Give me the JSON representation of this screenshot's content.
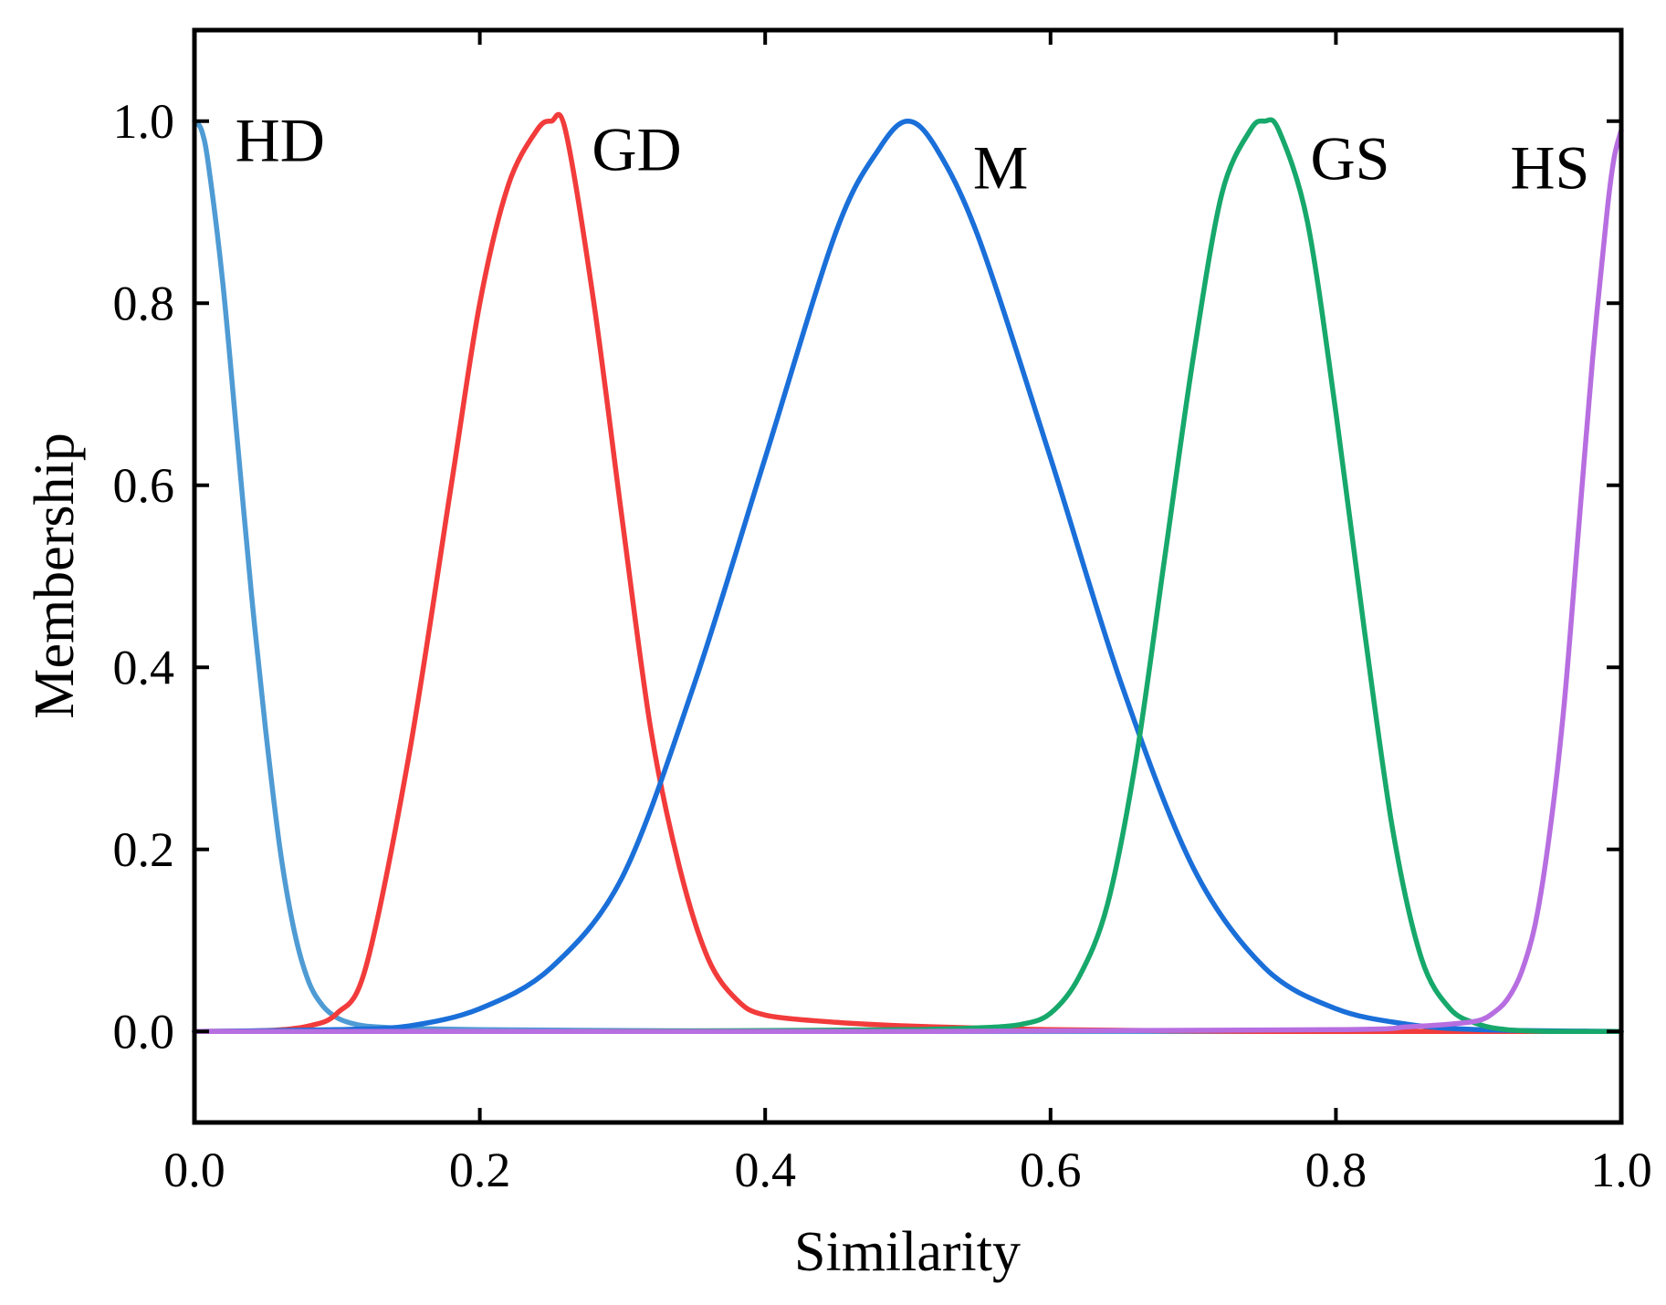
{
  "chart_data": {
    "type": "line",
    "title": "",
    "xlabel": "Similarity",
    "ylabel": "Membership",
    "xlim": [
      0,
      1
    ],
    "ylim": [
      -0.1,
      1.1
    ],
    "grid": false,
    "x_ticks": [
      0,
      0.2,
      0.4,
      0.6,
      0.8,
      1.0
    ],
    "y_ticks": [
      0,
      0.2,
      0.4,
      0.6,
      0.8,
      1.0
    ],
    "x_tick_labels": [
      "0.0",
      "0.2",
      "0.4",
      "0.6",
      "0.8",
      "1.0"
    ],
    "y_tick_labels": [
      "0.0",
      "0.2",
      "0.4",
      "0.6",
      "0.8",
      "1.0"
    ],
    "series": [
      {
        "name": "HD",
        "color": "#4f9bd4",
        "x": [
          0.0,
          0.005,
          0.01,
          0.02,
          0.03,
          0.04,
          0.05,
          0.06,
          0.07,
          0.08,
          0.09,
          0.1,
          0.11,
          0.12,
          0.14,
          0.16,
          0.2,
          0.3,
          0.5,
          0.75,
          1.0
        ],
        "y": [
          1.0,
          0.99,
          0.95,
          0.82,
          0.65,
          0.48,
          0.33,
          0.2,
          0.11,
          0.055,
          0.028,
          0.015,
          0.009,
          0.006,
          0.004,
          0.003,
          0.002,
          0.001,
          0.0,
          0.0,
          0.0
        ]
      },
      {
        "name": "GD",
        "color": "#f23b3b",
        "x": [
          0.0,
          0.05,
          0.08,
          0.1,
          0.12,
          0.15,
          0.18,
          0.2,
          0.22,
          0.24,
          0.25,
          0.26,
          0.28,
          0.3,
          0.32,
          0.34,
          0.36,
          0.38,
          0.4,
          0.45,
          0.5,
          0.6,
          0.75,
          1.0
        ],
        "y": [
          0.0,
          0.001,
          0.006,
          0.02,
          0.07,
          0.3,
          0.6,
          0.8,
          0.93,
          0.99,
          1.0,
          0.99,
          0.8,
          0.56,
          0.33,
          0.18,
          0.08,
          0.035,
          0.018,
          0.01,
          0.006,
          0.002,
          0.0,
          0.0
        ]
      },
      {
        "name": "M",
        "color": "#1a6fd9",
        "x": [
          0.0,
          0.1,
          0.15,
          0.2,
          0.25,
          0.3,
          0.35,
          0.4,
          0.45,
          0.48,
          0.5,
          0.52,
          0.55,
          0.6,
          0.65,
          0.7,
          0.75,
          0.8,
          0.85,
          0.9,
          1.0
        ],
        "y": [
          0.0,
          0.002,
          0.006,
          0.025,
          0.07,
          0.17,
          0.38,
          0.63,
          0.88,
          0.97,
          1.0,
          0.97,
          0.87,
          0.63,
          0.38,
          0.18,
          0.07,
          0.025,
          0.008,
          0.002,
          0.0
        ]
      },
      {
        "name": "GS",
        "color": "#17a86b",
        "x": [
          0.0,
          0.25,
          0.4,
          0.5,
          0.55,
          0.58,
          0.6,
          0.62,
          0.64,
          0.66,
          0.68,
          0.7,
          0.72,
          0.74,
          0.75,
          0.76,
          0.78,
          0.8,
          0.82,
          0.84,
          0.86,
          0.88,
          0.9,
          0.92,
          0.95,
          1.0
        ],
        "y": [
          0.0,
          0.0,
          0.001,
          0.002,
          0.004,
          0.008,
          0.02,
          0.06,
          0.14,
          0.3,
          0.52,
          0.74,
          0.92,
          0.99,
          1.0,
          0.99,
          0.89,
          0.68,
          0.44,
          0.22,
          0.08,
          0.025,
          0.008,
          0.002,
          0.0,
          0.0
        ]
      },
      {
        "name": "HS",
        "color": "#b76ee0",
        "x": [
          0.0,
          0.5,
          0.8,
          0.85,
          0.88,
          0.9,
          0.91,
          0.92,
          0.93,
          0.94,
          0.95,
          0.96,
          0.97,
          0.98,
          0.99,
          0.995,
          1.0
        ],
        "y": [
          0.0,
          0.0,
          0.002,
          0.005,
          0.008,
          0.012,
          0.02,
          0.035,
          0.065,
          0.12,
          0.22,
          0.36,
          0.55,
          0.74,
          0.9,
          0.96,
          0.99
        ]
      }
    ],
    "annotations": [
      {
        "text": "HD",
        "x": 0.06,
        "y": 0.98
      },
      {
        "text": "GD",
        "x": 0.31,
        "y": 0.97
      },
      {
        "text": "M",
        "x": 0.565,
        "y": 0.95
      },
      {
        "text": "GS",
        "x": 0.81,
        "y": 0.96
      },
      {
        "text": "HS",
        "x": 0.95,
        "y": 0.95
      }
    ]
  }
}
